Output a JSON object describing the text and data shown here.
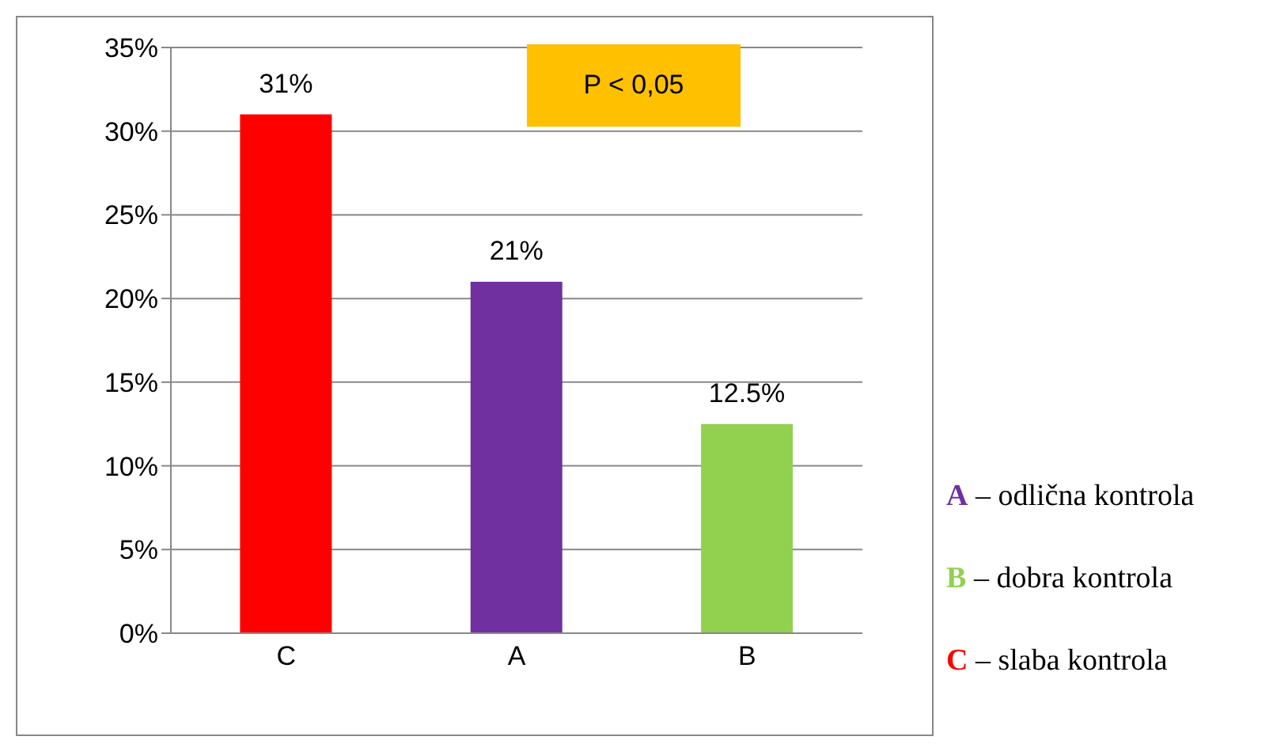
{
  "chart_data": {
    "type": "bar",
    "categories": [
      "C",
      "A",
      "B"
    ],
    "values": [
      31,
      21,
      12.5
    ],
    "colors": [
      "#ff0000",
      "#7030a0",
      "#92d050"
    ],
    "value_labels": [
      "31%",
      "21%",
      "12.5%"
    ],
    "ylim": [
      0,
      35
    ],
    "yticks": [
      {
        "value": 0,
        "label": "0%"
      },
      {
        "value": 5,
        "label": "5%"
      },
      {
        "value": 10,
        "label": "10%"
      },
      {
        "value": 15,
        "label": "15%"
      },
      {
        "value": 20,
        "label": "20%"
      },
      {
        "value": 25,
        "label": "25%"
      },
      {
        "value": 30,
        "label": "30%"
      },
      {
        "value": 35,
        "label": "35%"
      }
    ],
    "grid": "y",
    "annotations": [
      "P < 0,05",
      "A – odlična kontrola",
      "B – dobra kontrola",
      "C – slaba kontrola"
    ]
  }
}
